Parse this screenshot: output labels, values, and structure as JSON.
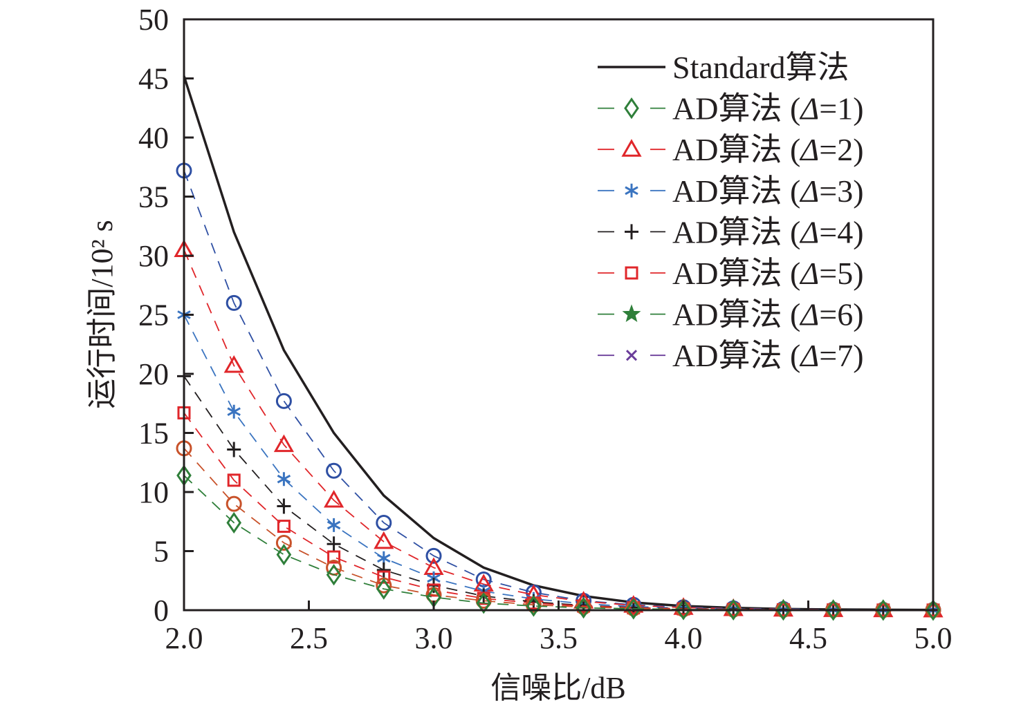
{
  "chart_data": {
    "type": "line",
    "title": "",
    "xlabel": "信噪比/dB",
    "ylabel": "运行时间/10² s",
    "xlim": [
      2.0,
      5.0
    ],
    "ylim": [
      0,
      50
    ],
    "grid": false,
    "legend_placement": "top-right",
    "x": [
      2.0,
      2.2,
      2.4,
      2.6,
      2.8,
      3.0,
      3.2,
      3.4,
      3.6,
      3.8,
      4.0,
      4.2,
      4.4,
      4.6,
      4.8,
      5.0
    ],
    "x_ticks": [
      "2.0",
      "2.5",
      "3.0",
      "3.5",
      "4.0",
      "4.5",
      "5.0"
    ],
    "x_tick_values": [
      2.0,
      2.5,
      3.0,
      3.5,
      4.0,
      4.5,
      5.0
    ],
    "y_ticks": [
      "0",
      "5",
      "10",
      "15",
      "20",
      "25",
      "30",
      "35",
      "40",
      "45",
      "50"
    ],
    "y_tick_values": [
      0,
      5,
      10,
      15,
      20,
      25,
      30,
      35,
      40,
      45,
      50
    ],
    "series": [
      {
        "name": "Standard",
        "color": "#231f20",
        "marker": "none",
        "dash": false,
        "values": [
          45.2,
          32.0,
          22.0,
          15.0,
          9.7,
          6.1,
          3.6,
          2.1,
          1.2,
          0.65,
          0.35,
          0.2,
          0.1,
          0.06,
          0.04,
          0.02
        ]
      },
      {
        "name": "blue-circle",
        "color": "#2e4fa3",
        "marker": "circle",
        "dash": true,
        "values": [
          37.2,
          26.0,
          17.7,
          11.8,
          7.4,
          4.6,
          2.6,
          1.5,
          0.8,
          0.45,
          0.25,
          0.15,
          0.1,
          0.05,
          0.03,
          0.02
        ]
      },
      {
        "name": "red-triangle",
        "color": "#e0262a",
        "marker": "triangle",
        "dash": true,
        "values": [
          30.5,
          20.7,
          14.0,
          9.3,
          5.8,
          3.6,
          2.2,
          1.3,
          0.75,
          0.4,
          0.22,
          0.12,
          0.07,
          0.04,
          0.02,
          0.01
        ]
      },
      {
        "name": "blue-star",
        "color": "#3a74c0",
        "marker": "asterisk",
        "dash": true,
        "values": [
          25.0,
          16.8,
          11.1,
          7.2,
          4.4,
          2.7,
          1.6,
          0.95,
          0.55,
          0.3,
          0.17,
          0.1,
          0.05,
          0.03,
          0.02,
          0.01
        ]
      },
      {
        "name": "black-plus",
        "color": "#231f20",
        "marker": "plus",
        "dash": true,
        "values": [
          19.8,
          13.6,
          8.8,
          5.6,
          3.4,
          2.1,
          1.2,
          0.7,
          0.4,
          0.22,
          0.13,
          0.07,
          0.04,
          0.02,
          0.01,
          0.01
        ]
      },
      {
        "name": "red-square",
        "color": "#e0262a",
        "marker": "square",
        "dash": true,
        "values": [
          16.7,
          11.0,
          7.1,
          4.5,
          2.8,
          1.7,
          1.0,
          0.6,
          0.35,
          0.2,
          0.11,
          0.06,
          0.03,
          0.02,
          0.01,
          0.01
        ]
      },
      {
        "name": "orange-circle",
        "color": "#c8522a",
        "marker": "circle",
        "dash": true,
        "values": [
          13.7,
          9.0,
          5.7,
          3.6,
          2.1,
          1.3,
          0.8,
          0.45,
          0.27,
          0.15,
          0.08,
          0.05,
          0.03,
          0.02,
          0.01,
          0.01
        ]
      },
      {
        "name": "green-diamond",
        "color": "#2f7f3a",
        "marker": "diamond",
        "dash": true,
        "values": [
          11.4,
          7.4,
          4.7,
          3.0,
          1.8,
          1.1,
          0.6,
          0.35,
          0.2,
          0.12,
          0.06,
          0.04,
          0.02,
          0.01,
          0.01,
          0.01
        ]
      }
    ],
    "legend": [
      {
        "prefix": "Standard算法",
        "delta": "",
        "suffix": "",
        "color": "#231f20",
        "marker": "none",
        "dash": false
      },
      {
        "prefix": "AD算法 (",
        "delta": "Δ",
        "suffix": "=1)",
        "color": "#2f7f3a",
        "marker": "diamond",
        "dash": true
      },
      {
        "prefix": "AD算法 (",
        "delta": "Δ",
        "suffix": "=2)",
        "color": "#e0262a",
        "marker": "triangle",
        "dash": true
      },
      {
        "prefix": "AD算法 (",
        "delta": "Δ",
        "suffix": "=3)",
        "color": "#3a74c0",
        "marker": "asterisk",
        "dash": true
      },
      {
        "prefix": "AD算法 (",
        "delta": "Δ",
        "suffix": "=4)",
        "color": "#231f20",
        "marker": "plus",
        "dash": true
      },
      {
        "prefix": "AD算法 (",
        "delta": "Δ",
        "suffix": "=5)",
        "color": "#e0262a",
        "marker": "square",
        "dash": true
      },
      {
        "prefix": "AD算法 (",
        "delta": "Δ",
        "suffix": "=6)",
        "color": "#2f7f3a",
        "marker": "star",
        "dash": true
      },
      {
        "prefix": "AD算法 (",
        "delta": "Δ",
        "suffix": "=7)",
        "color": "#6a3d9a",
        "marker": "cross",
        "dash": true
      }
    ]
  }
}
